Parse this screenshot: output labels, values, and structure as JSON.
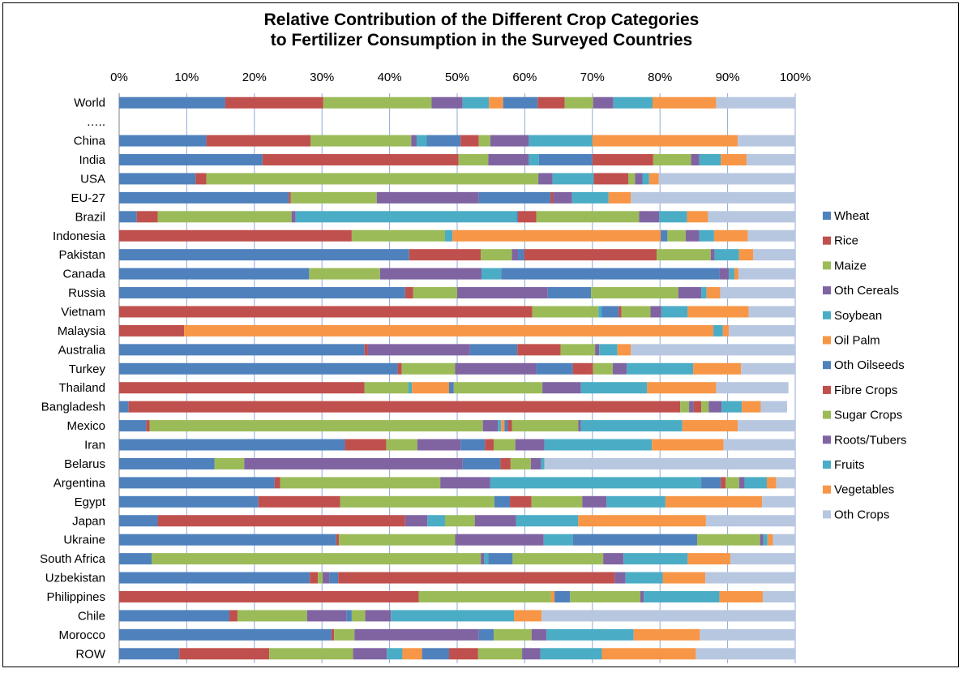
{
  "chart_data": {
    "type": "bar",
    "orientation": "horizontal",
    "stacked": "percent",
    "title_lines": [
      "Relative Contribution of the Different Crop Categories",
      "to Fertilizer Consumption in the Surveyed Countries"
    ],
    "x_ticks": [
      "0%",
      "10%",
      "20%",
      "30%",
      "40%",
      "50%",
      "60%",
      "70%",
      "80%",
      "90%",
      "100%"
    ],
    "xlim": [
      0,
      100
    ],
    "grid": "vertical",
    "legend_position": "right",
    "categories": [
      "World",
      "…..",
      "China",
      "India",
      "USA",
      "EU-27",
      "Brazil",
      "Indonesia",
      "Pakistan",
      "Canada",
      "Russia",
      "Vietnam",
      "Malaysia",
      "Australia",
      "Turkey",
      "Thailand",
      "Bangladesh",
      "Mexico",
      "Iran",
      "Belarus",
      "Argentina",
      "Egypt",
      "Japan",
      "Ukraine",
      "South Africa",
      "Uzbekistan",
      "Philippines",
      "Chile",
      "Morocco",
      "ROW"
    ],
    "series": [
      {
        "name": "Wheat",
        "color": "#4F81BD",
        "values": [
          15.7,
          null,
          12.9,
          21.2,
          11.3,
          25.1,
          2.6,
          0,
          42.9,
          28.1,
          42.3,
          0,
          0,
          36.3,
          41.2,
          0,
          1.4,
          4.0,
          33.4,
          14.1,
          23.0,
          20.6,
          5.7,
          32.1,
          4.8,
          28.2,
          0,
          16.3,
          31.4,
          8.9
        ]
      },
      {
        "name": "Rice",
        "color": "#C0504D",
        "values": [
          14.5,
          null,
          15.4,
          29.0,
          1.6,
          0.3,
          3.1,
          34.4,
          10.6,
          0,
          1.2,
          61.1,
          9.6,
          0.5,
          0.6,
          36.3,
          81.6,
          0.5,
          6.1,
          0,
          0.8,
          12.1,
          36.6,
          0.4,
          0,
          1.2,
          44.3,
          1.2,
          0.4,
          13.3
        ]
      },
      {
        "name": "Maize",
        "color": "#9BBB59",
        "values": [
          16.0,
          null,
          14.9,
          4.4,
          49.1,
          12.7,
          19.8,
          13.8,
          4.6,
          10.5,
          6.5,
          9.8,
          0,
          0,
          7.9,
          6.5,
          1.3,
          49.3,
          4.6,
          4.4,
          23.7,
          22.8,
          0,
          17.2,
          48.7,
          0.7,
          19.6,
          10.3,
          3.0,
          12.4
        ]
      },
      {
        "name": "Oth Cereals",
        "color": "#8064A2",
        "values": [
          4.6,
          null,
          0.8,
          6.0,
          2.1,
          15.1,
          0.6,
          0,
          0.9,
          15.0,
          13.4,
          0,
          0,
          15.1,
          12.0,
          0,
          0.7,
          2.2,
          6.4,
          32.3,
          7.4,
          0,
          3.3,
          13.1,
          0.5,
          1.0,
          0,
          5.8,
          18.4,
          5.0
        ]
      },
      {
        "name": "Soybean",
        "color": "#4BACC6",
        "values": [
          3.9,
          null,
          1.5,
          1.5,
          6.1,
          0,
          32.7,
          1.1,
          0,
          2.9,
          0,
          0.5,
          0,
          0,
          0,
          0.5,
          0,
          0.5,
          0,
          0,
          31.2,
          0,
          2.6,
          4.3,
          0.6,
          0,
          0,
          0,
          0,
          2.3
        ]
      },
      {
        "name": "Oil Palm",
        "color": "#F79646",
        "values": [
          2.1,
          null,
          0,
          0,
          0,
          0,
          0,
          30.8,
          0,
          0,
          0,
          0,
          78.3,
          0,
          0,
          5.5,
          0,
          0.5,
          0,
          0,
          0,
          0,
          0,
          0,
          0,
          0,
          0.5,
          0,
          0,
          2.9
        ]
      },
      {
        "name": "Oth Oilseeds",
        "color": "#4F81BD",
        "values": [
          5.1,
          null,
          5.0,
          7.9,
          0,
          10.6,
          0.2,
          1.0,
          0.9,
          32.3,
          6.4,
          2.5,
          0,
          7.0,
          5.4,
          0.7,
          0,
          0.5,
          3.6,
          5.6,
          2.9,
          2.3,
          0,
          18.4,
          3.6,
          1.3,
          2.3,
          0.8,
          2.2,
          4.0
        ]
      },
      {
        "name": "Fibre Crops",
        "color": "#C0504D",
        "values": [
          4.0,
          null,
          2.7,
          9.0,
          5.1,
          0.4,
          2.7,
          0,
          19.6,
          0,
          0,
          0.4,
          0,
          6.4,
          3.0,
          0,
          1.1,
          0.6,
          1.3,
          1.5,
          0.7,
          3.2,
          0,
          0,
          0,
          40.9,
          0,
          0,
          0,
          4.3
        ]
      },
      {
        "name": "Sugar Crops",
        "color": "#9BBB59",
        "values": [
          4.2,
          null,
          1.7,
          5.6,
          1.0,
          0,
          15.2,
          2.7,
          8.0,
          0,
          12.9,
          4.3,
          0,
          5.1,
          2.9,
          13.1,
          1.1,
          9.8,
          3.2,
          3.0,
          2.0,
          7.5,
          4.4,
          9.3,
          13.4,
          0,
          10.4,
          2.0,
          5.6,
          6.5
        ]
      },
      {
        "name": "Roots/Tubers",
        "color": "#8064A2",
        "values": [
          3.0,
          null,
          5.7,
          1.2,
          1.1,
          2.8,
          3.0,
          2.0,
          0.6,
          1.4,
          3.4,
          1.6,
          0,
          0.6,
          2.1,
          5.7,
          1.9,
          0.4,
          4.3,
          1.5,
          0.8,
          3.6,
          6.1,
          0.5,
          3.0,
          1.6,
          0.5,
          3.8,
          2.2,
          2.7
        ]
      },
      {
        "name": "Fruits",
        "color": "#4BACC6",
        "values": [
          5.8,
          null,
          9.4,
          3.2,
          1.0,
          5.4,
          4.1,
          2.2,
          3.6,
          0.8,
          0.8,
          3.9,
          1.4,
          2.7,
          9.8,
          9.8,
          3.0,
          15.0,
          15.9,
          0.5,
          3.3,
          8.7,
          9.2,
          0.6,
          9.5,
          5.5,
          11.2,
          18.2,
          12.9,
          9.1
        ]
      },
      {
        "name": "Vegetables",
        "color": "#F79646",
        "values": [
          9.4,
          null,
          21.5,
          3.8,
          1.4,
          3.3,
          3.1,
          5.0,
          2.1,
          0.6,
          2.0,
          9.0,
          0.9,
          2.0,
          7.1,
          10.2,
          2.8,
          8.2,
          10.6,
          0,
          1.4,
          14.3,
          18.9,
          0.8,
          6.3,
          6.3,
          6.4,
          4.1,
          9.8,
          13.9
        ]
      },
      {
        "name": "Oth Crops",
        "color": "#B8C7E0",
        "values": [
          11.7,
          null,
          8.5,
          7.2,
          20.2,
          24.3,
          12.9,
          7.0,
          6.2,
          8.4,
          11.1,
          6.9,
          9.8,
          24.3,
          8.0,
          10.7,
          3.9,
          8.5,
          10.6,
          37.1,
          2.8,
          4.9,
          13.2,
          3.3,
          9.6,
          13.3,
          4.8,
          37.5,
          14.1,
          14.7
        ]
      }
    ]
  }
}
